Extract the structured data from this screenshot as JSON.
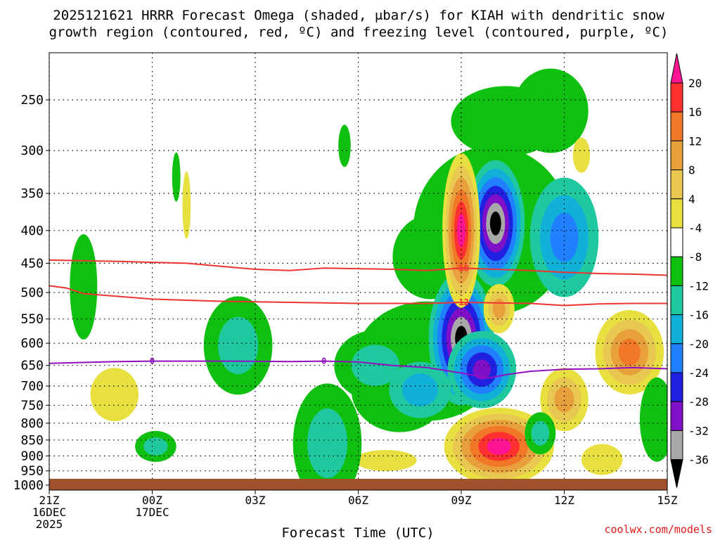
{
  "title": {
    "line1": "2025121621 HRRR Forecast Omega (shaded, μbar/s) for KIAH with dendritic snow",
    "line2": "growth region (contoured, red, ºC) and freezing level (contoured, purple, ºC)"
  },
  "credit": "coolwx.com/models",
  "chart_data": {
    "type": "time-height cross section (filled contour)",
    "xlabel": "Forecast Time (UTC)",
    "ylabel": "",
    "x_range_hours": [
      0,
      18
    ],
    "y_range_mb": [
      1000,
      200
    ],
    "x_ticks": [
      {
        "hour": 0,
        "lines": [
          "21Z",
          "16DEC",
          "2025"
        ]
      },
      {
        "hour": 3,
        "lines": [
          "00Z",
          "17DEC"
        ]
      },
      {
        "hour": 6,
        "lines": [
          "03Z"
        ]
      },
      {
        "hour": 9,
        "lines": [
          "06Z"
        ]
      },
      {
        "hour": 12,
        "lines": [
          "09Z"
        ]
      },
      {
        "hour": 15,
        "lines": [
          "12Z"
        ]
      },
      {
        "hour": 18,
        "lines": [
          "15Z"
        ]
      }
    ],
    "y_ticks": [
      250,
      300,
      350,
      400,
      450,
      500,
      550,
      600,
      650,
      700,
      750,
      800,
      850,
      900,
      950,
      1000
    ],
    "grid": true,
    "colorbar": {
      "labels": [
        "20",
        "16",
        "12",
        "8",
        "4",
        "-4",
        "-8",
        "-12",
        "-16",
        "-20",
        "-24",
        "-28",
        "-32",
        "-36"
      ],
      "colors": [
        "#ff1493",
        "#ff3030",
        "#f07828",
        "#e8a03c",
        "#e8c850",
        "#e8e040",
        "#ffffff",
        "#10c010",
        "#20c8a0",
        "#10b0d8",
        "#2080ff",
        "#2020e0",
        "#8010c8",
        "#a8a8a8",
        "#000000"
      ]
    },
    "omega_features": [
      {
        "name": "upward motion max",
        "hour": 13.0,
        "mb": 390,
        "min_value": -36
      },
      {
        "name": "upward motion max",
        "hour": 12.0,
        "mb": 590,
        "min_value": -36
      },
      {
        "name": "upward motion",
        "hour": 15.0,
        "mb": 410,
        "min_value": -24
      },
      {
        "name": "downward motion max",
        "hour": 12.0,
        "mb": 400,
        "max_value": 20
      },
      {
        "name": "downward motion max",
        "hour": 13.0,
        "mb": 875,
        "max_value": 20
      },
      {
        "name": "downward motion",
        "hour": 16.9,
        "mb": 630,
        "max_value": 12
      },
      {
        "name": "downward motion",
        "hour": 15.0,
        "mb": 730,
        "max_value": 12
      },
      {
        "name": "downward motion",
        "hour": 13.1,
        "mb": 530,
        "max_value": 12
      }
    ],
    "contours": [
      {
        "name": "dendritic growth -18C",
        "color": "#ee3333",
        "label": "-18",
        "points": [
          [
            0,
            445
          ],
          [
            2,
            447
          ],
          [
            4,
            450
          ],
          [
            6,
            460
          ],
          [
            7,
            462
          ],
          [
            8,
            458
          ],
          [
            10,
            460
          ],
          [
            11,
            462
          ],
          [
            12,
            458
          ],
          [
            13,
            460
          ],
          [
            14,
            462
          ],
          [
            15,
            465
          ],
          [
            16,
            467
          ],
          [
            17,
            468
          ],
          [
            18,
            470
          ]
        ]
      },
      {
        "name": "dendritic growth -12C",
        "color": "#ee3333",
        "label": "-12",
        "points": [
          [
            0,
            488
          ],
          [
            0.5,
            492
          ],
          [
            1,
            502
          ],
          [
            3,
            512
          ],
          [
            5,
            516
          ],
          [
            7,
            518
          ],
          [
            9,
            520
          ],
          [
            11,
            520
          ],
          [
            12,
            518
          ],
          [
            14,
            520
          ],
          [
            15,
            524
          ],
          [
            16,
            521
          ],
          [
            17,
            520
          ],
          [
            18,
            520
          ]
        ]
      },
      {
        "name": "freezing level 0C",
        "color": "#9010c0",
        "label": "0",
        "points": [
          [
            0,
            645
          ],
          [
            2,
            641
          ],
          [
            3,
            640
          ],
          [
            5,
            640
          ],
          [
            7,
            641
          ],
          [
            8,
            640
          ],
          [
            9,
            642
          ],
          [
            10,
            650
          ],
          [
            11,
            655
          ],
          [
            12,
            668
          ],
          [
            12.8,
            680
          ],
          [
            13.3,
            672
          ],
          [
            14,
            664
          ],
          [
            15,
            659
          ],
          [
            16,
            658
          ],
          [
            17,
            655
          ],
          [
            18,
            658
          ]
        ]
      }
    ]
  }
}
